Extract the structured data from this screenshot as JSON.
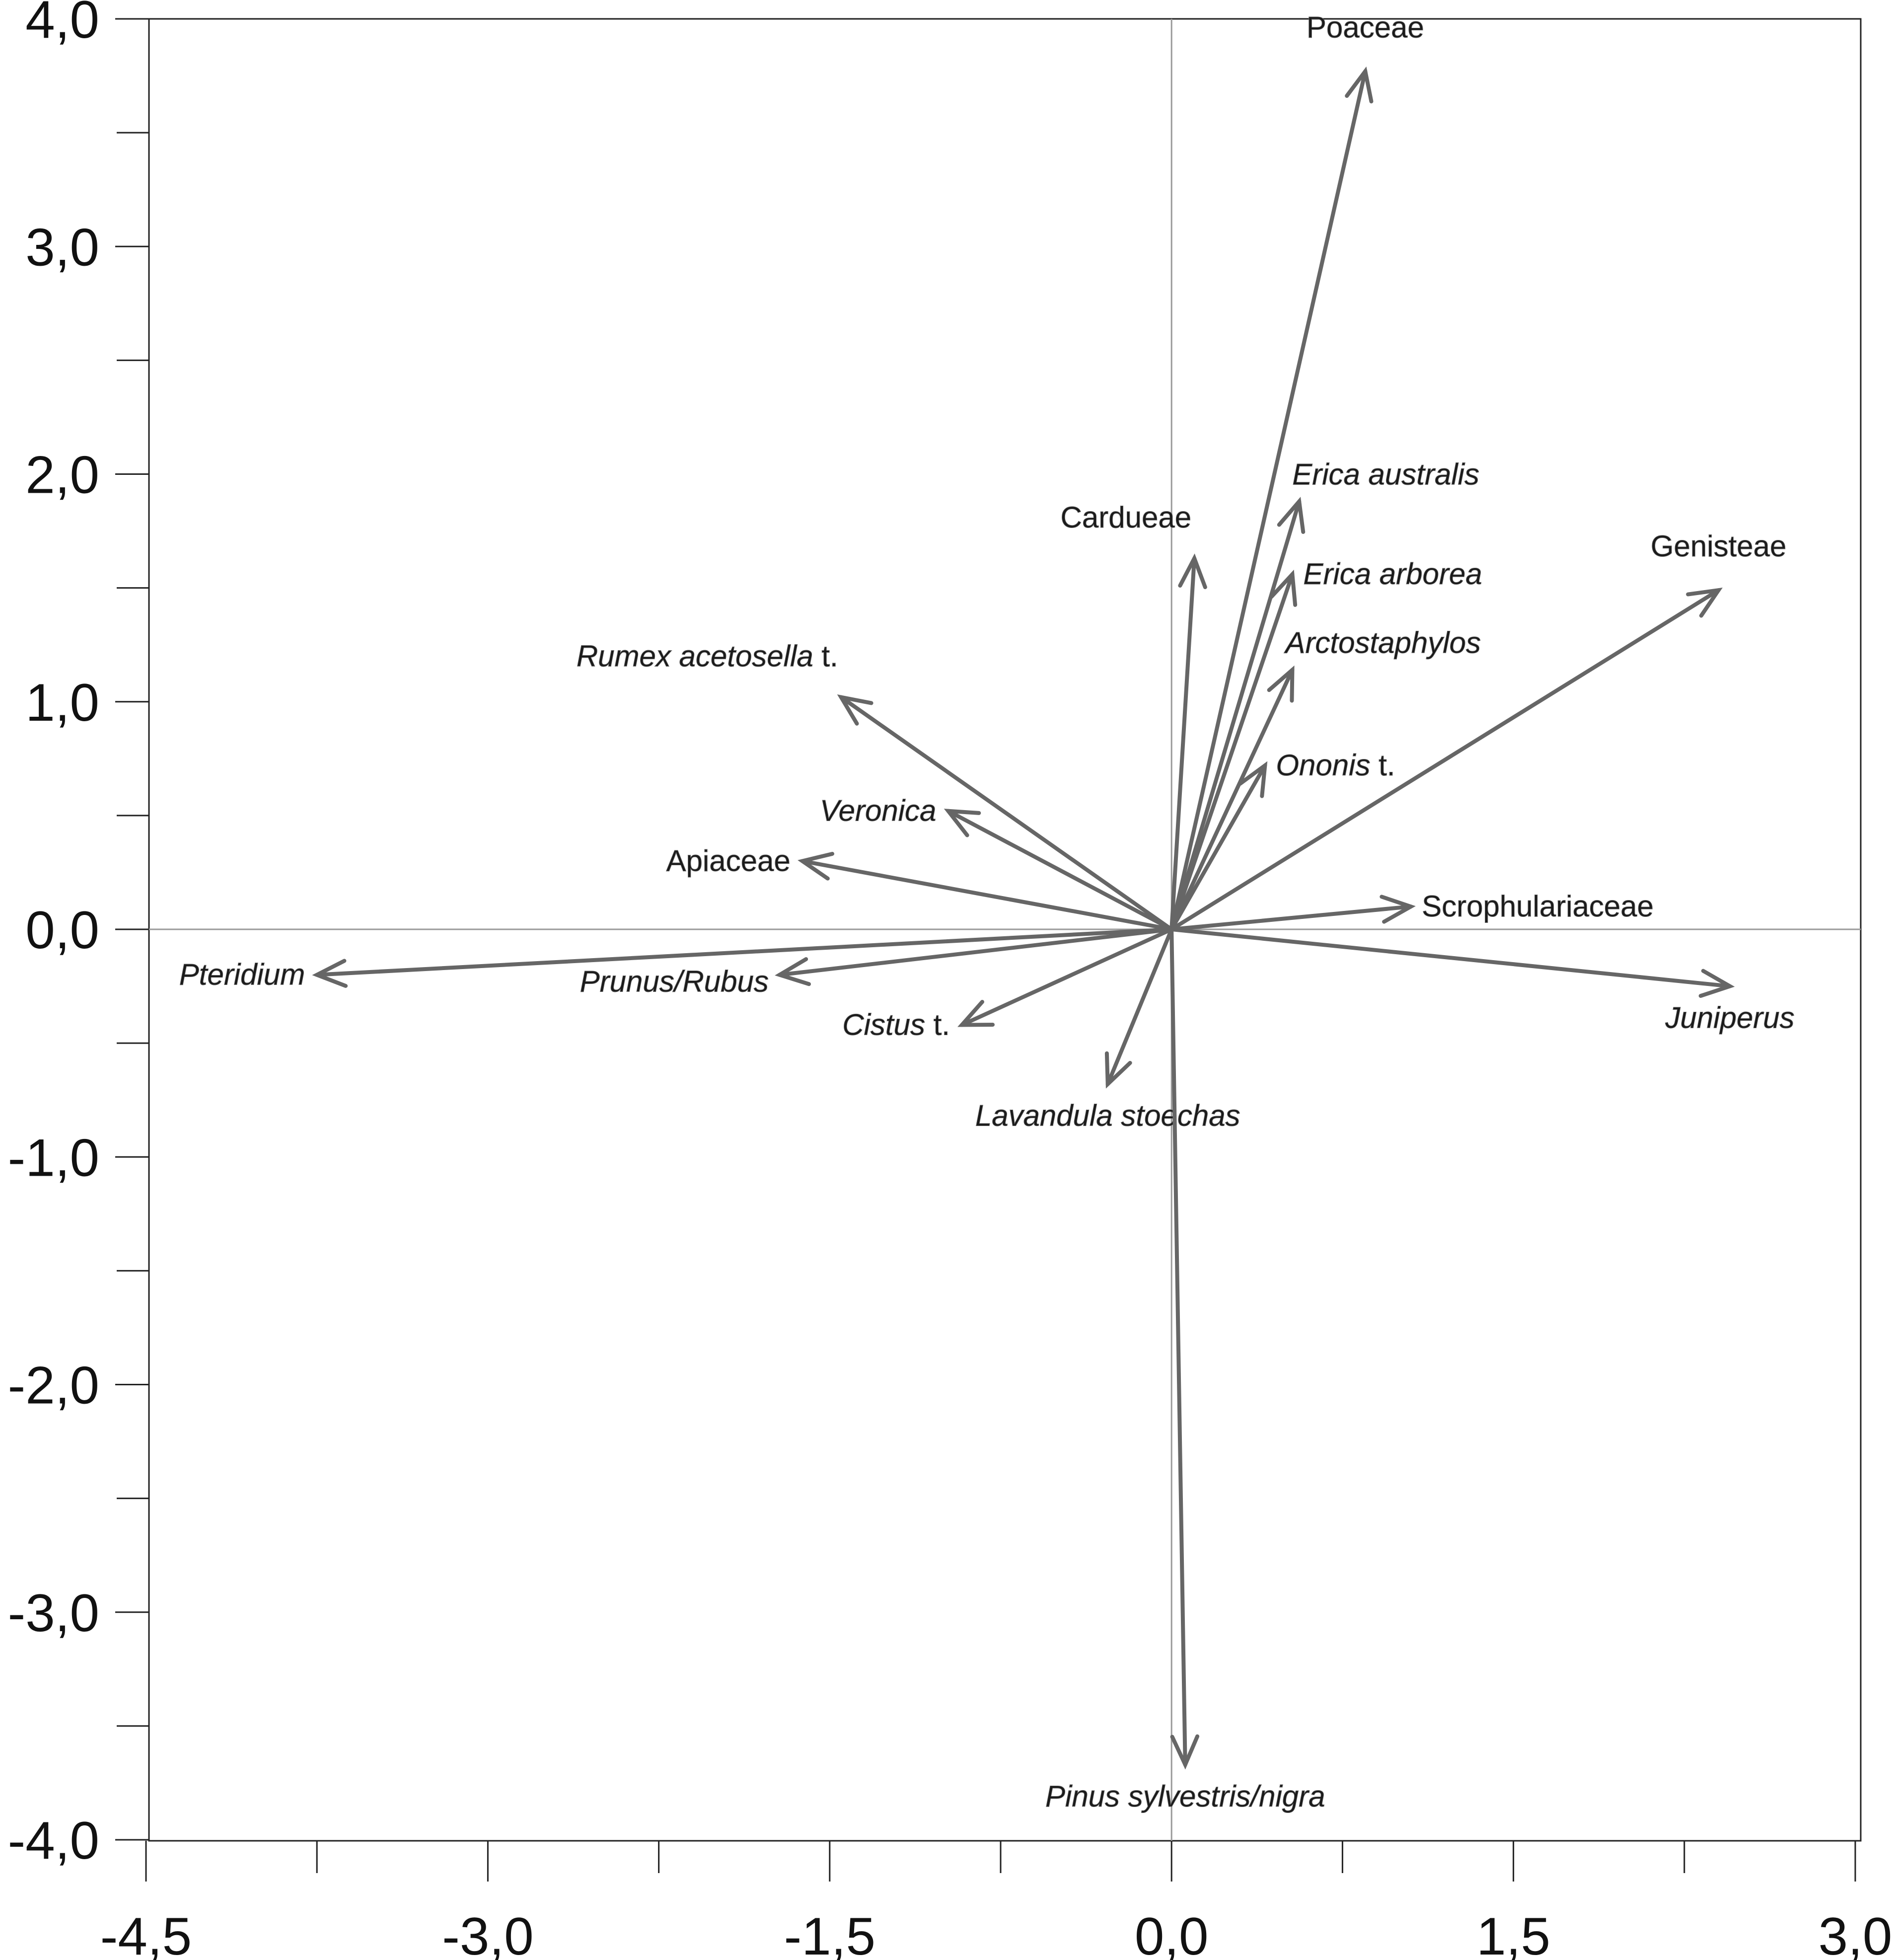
{
  "chart_data": {
    "type": "scatter",
    "subtype": "biplot-vectors",
    "title": "",
    "xlabel": "",
    "ylabel": "",
    "xlim": [
      -4.5,
      3.0
    ],
    "ylim": [
      -4.0,
      4.0
    ],
    "x_ticks": [
      {
        "value": -4.5,
        "label": "-4,5"
      },
      {
        "value": -3.0,
        "label": "-3,0"
      },
      {
        "value": -1.5,
        "label": "-1,5"
      },
      {
        "value": 0.0,
        "label": "0,0"
      },
      {
        "value": 1.5,
        "label": "1,5"
      },
      {
        "value": 3.0,
        "label": "3,0"
      }
    ],
    "y_ticks": [
      {
        "value": 4.0,
        "label": "4,0"
      },
      {
        "value": 3.0,
        "label": "3,0"
      },
      {
        "value": 2.0,
        "label": "2,0"
      },
      {
        "value": 1.0,
        "label": "1,0"
      },
      {
        "value": 0.0,
        "label": "0,0"
      },
      {
        "value": -1.0,
        "label": "-1,0"
      },
      {
        "value": -2.0,
        "label": "-2,0"
      },
      {
        "value": -3.0,
        "label": "-3,0"
      },
      {
        "value": -4.0,
        "label": "-4,0"
      }
    ],
    "x_minor_ticks": [
      -3.75,
      -2.25,
      -0.75,
      0.75,
      2.25
    ],
    "y_minor_ticks": [
      3.5,
      2.5,
      1.5,
      0.5,
      -0.5,
      -1.5,
      -2.5,
      -3.5
    ],
    "grid": false,
    "zero_lines": true,
    "vectors": [
      {
        "id": "poaceae",
        "label": [
          {
            "text": "Poaceae",
            "italic": false
          }
        ],
        "x": 0.85,
        "y": 3.77,
        "label_side": "above"
      },
      {
        "id": "erica-australis",
        "label": [
          {
            "text": "Erica australis",
            "italic": true
          }
        ],
        "x": 0.56,
        "y": 1.88,
        "label_side": "above-right"
      },
      {
        "id": "cardueae",
        "label": [
          {
            "text": "Cardueae",
            "italic": false
          }
        ],
        "x": 0.1,
        "y": 1.63,
        "label_side": "above-left"
      },
      {
        "id": "erica-arborea",
        "label": [
          {
            "text": "Erica arborea",
            "italic": true
          }
        ],
        "x": 0.53,
        "y": 1.56,
        "label_side": "right"
      },
      {
        "id": "genisteae",
        "label": [
          {
            "text": "Genisteae",
            "italic": false
          }
        ],
        "x": 2.4,
        "y": 1.49,
        "label_side": "above"
      },
      {
        "id": "arctostaphylos",
        "label": [
          {
            "text": "Arctostaphylos",
            "italic": true
          }
        ],
        "x": 0.53,
        "y": 1.14,
        "label_side": "above-right"
      },
      {
        "id": "rumex",
        "label": [
          {
            "text": "Rumex acetosella",
            "italic": true
          },
          {
            "text": " t.",
            "italic": false
          }
        ],
        "x": -1.45,
        "y": 1.02,
        "label_side": "above-left"
      },
      {
        "id": "ononis",
        "label": [
          {
            "text": "Ononis",
            "italic": true
          },
          {
            "text": " t.",
            "italic": false
          }
        ],
        "x": 0.41,
        "y": 0.72,
        "label_side": "right"
      },
      {
        "id": "veronica",
        "label": [
          {
            "text": "Veronica",
            "italic": true
          }
        ],
        "x": -0.98,
        "y": 0.52,
        "label_side": "left"
      },
      {
        "id": "apiaceae",
        "label": [
          {
            "text": "Apiaceae",
            "italic": false
          }
        ],
        "x": -1.62,
        "y": 0.3,
        "label_side": "left"
      },
      {
        "id": "scrophulariaceae",
        "label": [
          {
            "text": "Scrophulariaceae",
            "italic": false
          }
        ],
        "x": 1.05,
        "y": 0.1,
        "label_side": "right"
      },
      {
        "id": "pteridium",
        "label": [
          {
            "text": "Pteridium",
            "italic": true
          }
        ],
        "x": -3.75,
        "y": -0.2,
        "label_side": "left"
      },
      {
        "id": "juniperus",
        "label": [
          {
            "text": "Juniperus",
            "italic": true
          }
        ],
        "x": 2.45,
        "y": -0.25,
        "label_side": "below"
      },
      {
        "id": "prunus-rubus",
        "label": [
          {
            "text": "Prunus/Rubus",
            "italic": true
          }
        ],
        "x": -1.72,
        "y": -0.2,
        "label_side": "below-left"
      },
      {
        "id": "cistus",
        "label": [
          {
            "text": "Cistus",
            "italic": true
          },
          {
            "text": " t.",
            "italic": false
          }
        ],
        "x": -0.92,
        "y": -0.42,
        "label_side": "left"
      },
      {
        "id": "lavandula",
        "label": [
          {
            "text": "Lavandula stoechas",
            "italic": true
          }
        ],
        "x": -0.28,
        "y": -0.68,
        "label_side": "below"
      },
      {
        "id": "pinus",
        "label": [
          {
            "text": "Pinus sylvestris/nigra",
            "italic": true
          }
        ],
        "x": 0.06,
        "y": -3.67,
        "label_side": "below"
      }
    ]
  },
  "colors": {
    "vector": "#666666",
    "frame": "#222222",
    "zero_line": "#9a9a9a"
  }
}
